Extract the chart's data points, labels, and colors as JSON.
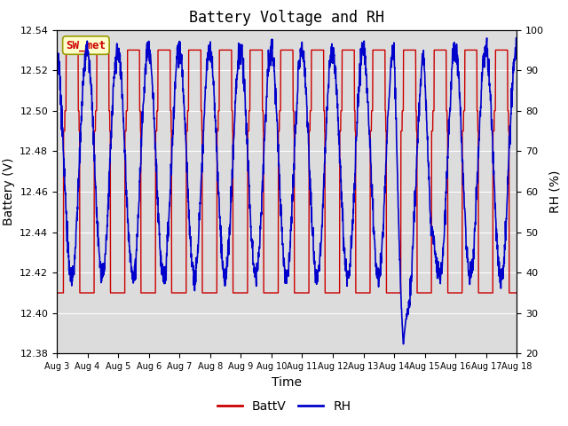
{
  "title": "Battery Voltage and RH",
  "xlabel": "Time",
  "ylabel_left": "Battery (V)",
  "ylabel_right": "RH (%)",
  "annotation": "SW_met",
  "ylim_left": [
    12.38,
    12.54
  ],
  "ylim_right": [
    20,
    100
  ],
  "yticks_left": [
    12.38,
    12.4,
    12.42,
    12.44,
    12.46,
    12.48,
    12.5,
    12.52,
    12.54
  ],
  "yticks_right": [
    20,
    30,
    40,
    50,
    60,
    70,
    80,
    90,
    100
  ],
  "xtick_labels": [
    "Aug 3",
    "Aug 4",
    "Aug 5",
    "Aug 6",
    "Aug 7",
    "Aug 8",
    "Aug 9",
    "Aug 10",
    "Aug 11",
    "Aug 12",
    "Aug 13",
    "Aug 14",
    "Aug 15",
    "Aug 16",
    "Aug 17",
    "Aug 18"
  ],
  "color_batt": "#cc0000",
  "color_rh": "#0000cc",
  "legend_batt": "BattV",
  "legend_rh": "RH",
  "bg_inner": "#dcdcdc",
  "bg_outer": "#ffffff",
  "annotation_bg": "#ffffcc",
  "annotation_border": "#999900",
  "n_days": 15
}
